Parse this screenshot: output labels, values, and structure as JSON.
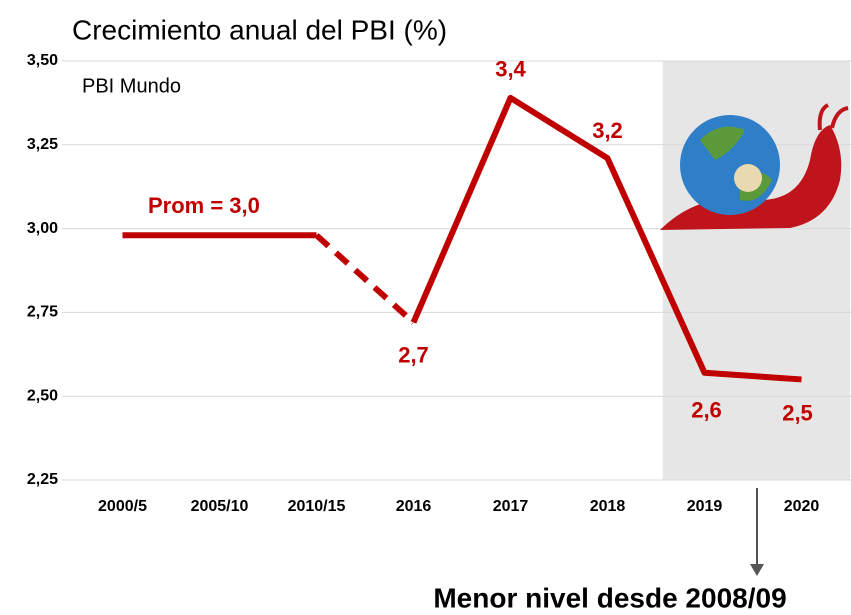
{
  "chart_data": {
    "type": "line",
    "title": "Crecimiento anual del PBI (%)",
    "subtitle": "PBI Mundo",
    "categories": [
      "2000/5",
      "2005/10",
      "2010/15",
      "2016",
      "2017",
      "2018",
      "2019",
      "2020"
    ],
    "values": [
      2.98,
      2.98,
      2.98,
      2.72,
      3.39,
      3.21,
      2.57,
      2.55
    ],
    "value_labels": [
      null,
      null,
      null,
      "2,7",
      "3,4",
      "3,2",
      "2,6",
      "2,5"
    ],
    "color": "#c00000",
    "dashed_segment": [
      "2010/15",
      "2016"
    ],
    "highlight": [
      "2019",
      "2020"
    ],
    "ylim": [
      2.25,
      3.5
    ],
    "yticks": [
      {
        "value": 2.25,
        "label": "2,25"
      },
      {
        "value": 2.5,
        "label": "2,50"
      },
      {
        "value": 2.75,
        "label": "2,75"
      },
      {
        "value": 3.0,
        "label": "3,00"
      },
      {
        "value": 3.25,
        "label": "3,25"
      },
      {
        "value": 3.5,
        "label": "3,50"
      }
    ],
    "grid": true,
    "annotations": [
      "Prom = 3,0",
      "Menor nivel desde 2008/09"
    ]
  }
}
